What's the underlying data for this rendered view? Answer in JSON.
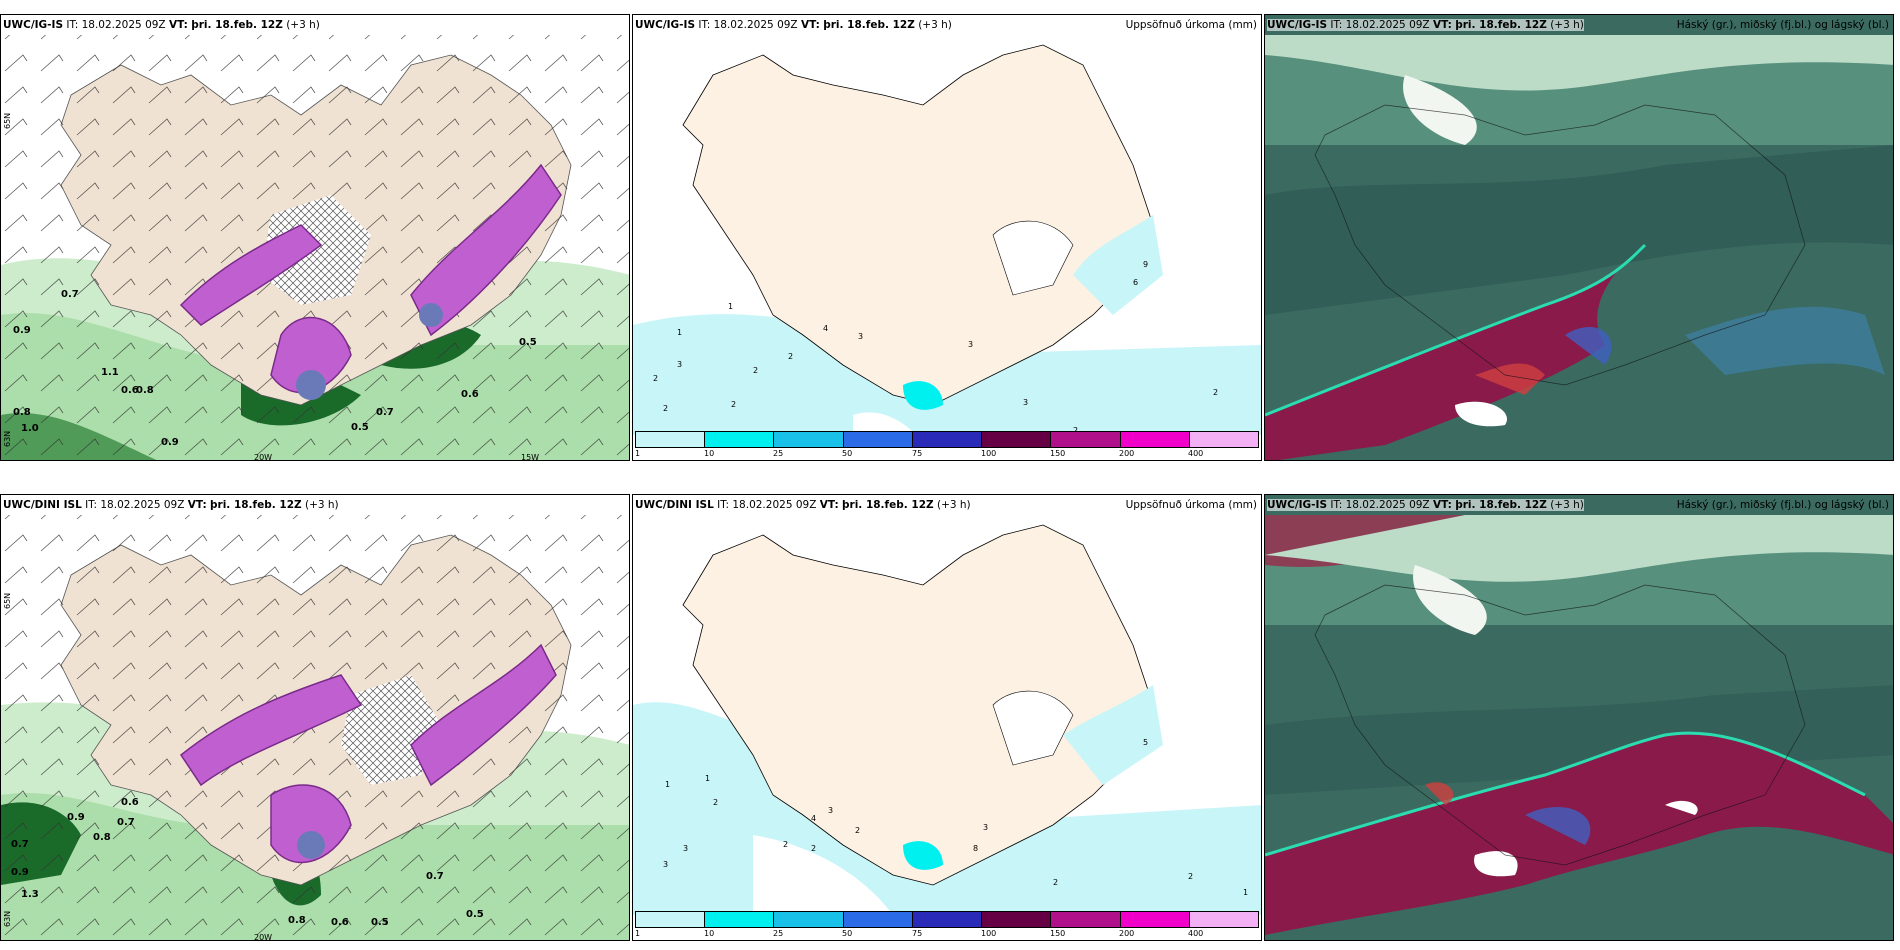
{
  "rows": [
    {
      "wind": {
        "model": "UWC/IG-IS",
        "it_label": "IT:",
        "it": "18.02.2025 09Z",
        "vt_label": "VT:",
        "vt": "þri. 18.feb. 12Z",
        "lead": "(+3 h)"
      },
      "precip": {
        "model": "UWC/IG-IS",
        "it_label": "IT:",
        "it": "18.02.2025 09Z",
        "vt_label": "VT:",
        "vt": "þri. 18.feb. 12Z",
        "lead": "(+3 h)",
        "right_title": "Uppsöfnuð úrkoma (mm)"
      },
      "cloud": {
        "model": "UWC/IG-IS",
        "it_label": "IT:",
        "it": "18.02.2025 09Z",
        "vt_label": "VT:",
        "vt": "þri. 18.feb. 12Z",
        "lead": "(+3 h)",
        "right_title": "Háský (gr.), miðský (fj.bl.) og lágský (bl.)"
      }
    },
    {
      "wind": {
        "model": "UWC/DINI ISL",
        "it_label": "IT:",
        "it": "18.02.2025 09Z",
        "vt_label": "VT:",
        "vt": "þri. 18.feb. 12Z",
        "lead": "(+3 h)"
      },
      "precip": {
        "model": "UWC/DINI ISL",
        "it_label": "IT:",
        "it": "18.02.2025 09Z",
        "vt_label": "VT:",
        "vt": "þri. 18.feb. 12Z",
        "lead": "(+3 h)",
        "right_title": "Uppsöfnuð úrkoma (mm)"
      },
      "cloud": {
        "model": "UWC/IG-IS",
        "it_label": "IT:",
        "it": "18.02.2025 09Z",
        "vt_label": "VT:",
        "vt": "þri. 18.feb. 12Z",
        "lead": "(+3 h)",
        "right_title": "Háský (gr.), miðský (fj.bl.) og lágský (bl.)"
      }
    }
  ],
  "axis_labels": {
    "lon_20": "20W",
    "lon_15": "15W",
    "lat_65": "65N",
    "lat_63": "63N"
  },
  "precip_legend": {
    "ticks": [
      "1",
      "10",
      "25",
      "50",
      "75",
      "100",
      "150",
      "200",
      "400"
    ],
    "colors": [
      "#c8f5f8",
      "#00f0f0",
      "#19c0e8",
      "#2c6be8",
      "#2a2ab8",
      "#660044",
      "#b0108a",
      "#f000c8",
      "#f4b0f4"
    ]
  },
  "colors": {
    "land": "#efe2d2",
    "land_precip": "#fdf1e4",
    "sea_precip": "#c8f5f8",
    "snow": "#c060d0",
    "green_light": "#cdeccc",
    "green_mid": "#7cc47a",
    "green_dark": "#1a6a2a",
    "cloud_base": "#3a6a60",
    "cloud_red": "#8a1a4a"
  },
  "wind_values_top": [
    "0.7",
    "0.9",
    "0.8",
    "1.0",
    "0.9",
    "0.6",
    "0.8",
    "1.1",
    "0.7",
    "0.5",
    "0.6",
    "0.5"
  ],
  "wind_values_bottom": [
    "0.7",
    "0.9",
    "0.6",
    "0.7",
    "0.8",
    "1.3",
    "0.9",
    "0.6",
    "0.5",
    "0.8",
    "0.7",
    "0.5"
  ],
  "precip_values_top": [
    "1",
    "1",
    "3",
    "2",
    "2",
    "4",
    "3",
    "2",
    "2",
    "2",
    "3",
    "3",
    "2",
    "6",
    "9",
    "2"
  ],
  "precip_values_bottom": [
    "1",
    "1",
    "2",
    "3",
    "3",
    "2",
    "4",
    "3",
    "2",
    "2",
    "8",
    "3",
    "2",
    "2",
    "1",
    "5"
  ]
}
